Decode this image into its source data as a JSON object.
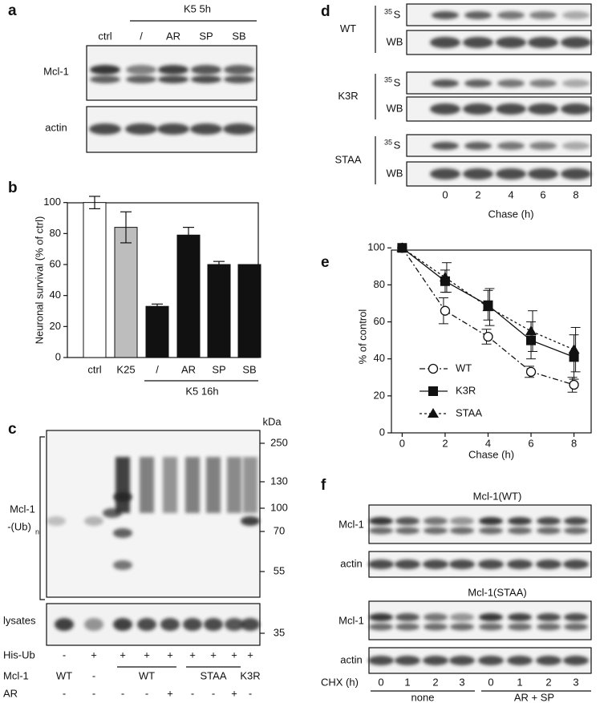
{
  "panels": {
    "a": {
      "letter": "a",
      "treatment": "K5 5h",
      "lanes": [
        "ctrl",
        "/",
        "AR",
        "SP",
        "SB"
      ],
      "rows": [
        "Mcl-1",
        "actin"
      ]
    },
    "b": {
      "letter": "b",
      "group_label": "K5 16h"
    },
    "c": {
      "letter": "c",
      "unit": "kDa",
      "markers": [
        "250",
        "130",
        "100",
        "70",
        "55"
      ],
      "lysate_marker": "35",
      "ub_label": {
        "text": "Mcl-1",
        "line2": "-(Ub)",
        "sub": "n"
      },
      "lysates": "lysates",
      "rows": [
        {
          "label": "His-Ub",
          "values": [
            "-",
            "+",
            "+",
            "+",
            "+",
            "+",
            "+",
            "+",
            "+"
          ]
        },
        {
          "label": "Mcl-1",
          "values": [
            "WT",
            "-",
            "WT",
            "STAA",
            "K3R"
          ]
        },
        {
          "label": "AR",
          "values": [
            "-",
            "-",
            "-",
            "-",
            "+",
            "-",
            "-",
            "+",
            "-"
          ]
        }
      ]
    },
    "d": {
      "letter": "d",
      "constructs": [
        "WT",
        "K3R",
        "STAA"
      ],
      "label_35S": {
        "sup": "35",
        "text": "S"
      },
      "wb": "WB",
      "lanes": [
        "0",
        "2",
        "4",
        "6",
        "8"
      ],
      "xlabel": "Chase (h)"
    },
    "e": {
      "letter": "e"
    },
    "f": {
      "letter": "f",
      "blots": [
        {
          "title": "Mcl-1(WT)",
          "rows": [
            "Mcl-1",
            "actin"
          ]
        },
        {
          "title": "Mcl-1(STAA)",
          "rows": [
            "Mcl-1",
            "actin"
          ]
        }
      ],
      "chx": "CHX (h)",
      "lanes": [
        "0",
        "1",
        "2",
        "3",
        "0",
        "1",
        "2",
        "3"
      ],
      "groups": [
        "none",
        "AR + SP"
      ]
    }
  },
  "chart_data": [
    {
      "type": "bar",
      "ylabel": "Neuronal survival (% of ctrl)",
      "categories": [
        "ctrl",
        "K25",
        "/",
        "AR",
        "SP",
        "SB"
      ],
      "values": [
        100,
        84,
        33,
        79,
        60,
        60
      ],
      "errors": [
        4,
        10,
        1.5,
        5,
        2,
        0
      ],
      "colors": [
        "#ffffff",
        "#bdbdbd",
        "#111111",
        "#111111",
        "#111111",
        "#111111"
      ],
      "ylim": [
        0,
        105
      ],
      "yticks": [
        0,
        20,
        40,
        60,
        80,
        100
      ]
    },
    {
      "type": "line",
      "xlabel": "Chase (h)",
      "ylabel": "% of control",
      "x": [
        0,
        2,
        4,
        6,
        8
      ],
      "series": [
        {
          "name": "WT",
          "color": "#111111",
          "marker": "circle-open",
          "dash": "7 3 2 3",
          "values": [
            100,
            66,
            52,
            33,
            26
          ],
          "errors": [
            0,
            7,
            4,
            3,
            4
          ]
        },
        {
          "name": "K3R",
          "color": "#111111",
          "marker": "square",
          "dash": "none",
          "values": [
            100,
            82,
            69,
            50,
            41
          ],
          "errors": [
            0,
            6,
            8,
            10,
            12
          ]
        },
        {
          "name": "STAA",
          "color": "#111111",
          "marker": "triangle",
          "dash": "3 3",
          "values": [
            100,
            84,
            68,
            55,
            45
          ],
          "errors": [
            0,
            8,
            10,
            11,
            12
          ]
        }
      ],
      "xlim": [
        -0.5,
        8.8
      ],
      "ylim": [
        0,
        104
      ],
      "xticks": [
        0,
        2,
        4,
        6,
        8
      ],
      "yticks": [
        0,
        20,
        40,
        60,
        80,
        100
      ]
    }
  ]
}
